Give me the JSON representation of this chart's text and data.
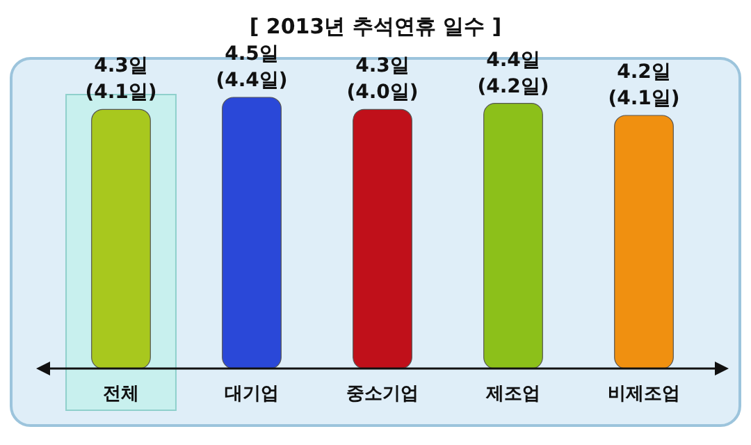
{
  "chart_data": {
    "type": "bar",
    "title": "[ 2013년 추석연휴 일수 ]",
    "categories": [
      "전체",
      "대기업",
      "중소기업",
      "제조업",
      "비제조업"
    ],
    "values": [
      4.3,
      4.5,
      4.3,
      4.4,
      4.2
    ],
    "colors": [
      "#a8c81e",
      "#2a48d8",
      "#c0101a",
      "#8cc01a",
      "#f09010"
    ],
    "value_labels": [
      "4.3일\n(4.1일)",
      "4.5일\n(4.4일)",
      "4.3일\n(4.0일)",
      "4.4일\n(4.2일)",
      "4.2일\n(4.1일)"
    ],
    "bands": [
      {
        "axis": "x",
        "from": "전체",
        "to": "전체",
        "color": "#c8f0ee"
      }
    ]
  }
}
